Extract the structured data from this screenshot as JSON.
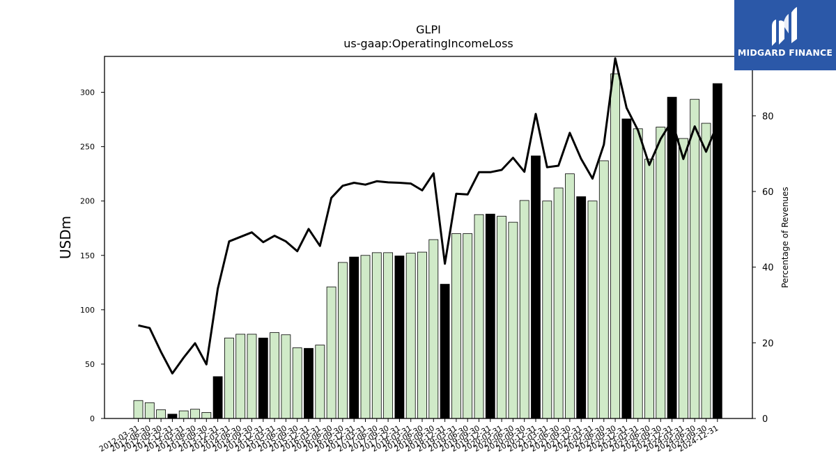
{
  "brand": {
    "name": "MIDGARD FINANCE",
    "icon": "midgard-finance-logo-icon",
    "color": "#2b58a8"
  },
  "colors": {
    "bar_normal": "#d0eac8",
    "bar_highlight": "#000000",
    "line": "#000000"
  },
  "chart_data": {
    "type": "bar",
    "title": "GLPI",
    "subtitle": "us-gaap:OperatingIncomeLoss",
    "ylabel": "USDm",
    "y2label": "Percentage of Revenues",
    "ylim": [
      0,
      333
    ],
    "y2lim": [
      0,
      95.7
    ],
    "yticks": [
      0,
      50,
      100,
      150,
      200,
      250,
      300
    ],
    "y2ticks": [
      0,
      20,
      40,
      60,
      80
    ],
    "grid": false,
    "categories": [
      "2012-03-31",
      "2012-06-30",
      "2012-09-30",
      "2012-12-31",
      "2013-03-31",
      "2013-06-30",
      "2013-09-30",
      "2013-12-31",
      "2014-03-31",
      "2014-06-30",
      "2014-09-30",
      "2014-12-31",
      "2015-03-31",
      "2015-06-30",
      "2015-09-30",
      "2015-12-31",
      "2016-03-31",
      "2016-06-30",
      "2016-09-30",
      "2016-12-31",
      "2017-03-31",
      "2017-06-30",
      "2017-09-30",
      "2017-12-31",
      "2018-03-31",
      "2018-06-30",
      "2018-09-30",
      "2018-12-31",
      "2019-03-31",
      "2019-06-30",
      "2019-09-30",
      "2019-12-31",
      "2020-03-31",
      "2020-06-30",
      "2020-09-30",
      "2020-12-31",
      "2021-03-31",
      "2021-06-30",
      "2021-09-30",
      "2021-12-31",
      "2022-03-31",
      "2022-06-30",
      "2022-09-30",
      "2022-12-31",
      "2023-03-31",
      "2023-06-30",
      "2023-09-30",
      "2023-12-31",
      "2024-03-31",
      "2024-06-30",
      "2024-09-30",
      "2024-12-31"
    ],
    "series": [
      {
        "type": "bar",
        "axis": "left",
        "values": [
          16.5,
          14.5,
          8,
          4,
          7,
          8.5,
          5.5,
          38.5,
          74,
          77.5,
          77.5,
          74,
          79,
          77,
          65,
          64.5,
          67.5,
          121,
          143.5,
          148.5,
          150,
          152.5,
          152.5,
          149.5,
          152,
          153,
          164.5,
          123.5,
          170,
          170,
          187.5,
          188,
          186,
          180.5,
          200.5,
          241.5,
          200,
          212,
          225,
          204,
          200,
          237,
          317,
          275.5,
          266.5,
          238.5,
          268,
          295.5,
          257.5,
          293.5,
          271.5,
          308
        ],
        "highlight": [
          false,
          false,
          false,
          true,
          false,
          false,
          false,
          true,
          false,
          false,
          false,
          true,
          false,
          false,
          false,
          true,
          false,
          false,
          false,
          true,
          false,
          false,
          false,
          true,
          false,
          false,
          false,
          true,
          false,
          false,
          false,
          true,
          false,
          false,
          false,
          true,
          false,
          false,
          false,
          true,
          false,
          false,
          false,
          true,
          false,
          false,
          false,
          true,
          false,
          false,
          false,
          true
        ]
      },
      {
        "type": "line",
        "axis": "right",
        "values": [
          24.6,
          23.9,
          17.6,
          11.9,
          16.1,
          19.9,
          14.3,
          34.3,
          46.8,
          48,
          49.2,
          46.6,
          48.3,
          46.8,
          44.2,
          50.1,
          45.6,
          58.3,
          61.5,
          62.3,
          61.8,
          62.7,
          62.4,
          62.3,
          62.1,
          60.3,
          64.8,
          40.9,
          59.4,
          59.2,
          65.1,
          65.1,
          65.7,
          68.9,
          65.2,
          80.5,
          66.4,
          66.8,
          75.5,
          68.6,
          63.4,
          72.4,
          95.2,
          82.1,
          76.2,
          67,
          73.9,
          78.7,
          68.6,
          77.2,
          70.5,
          77.8
        ]
      }
    ]
  }
}
